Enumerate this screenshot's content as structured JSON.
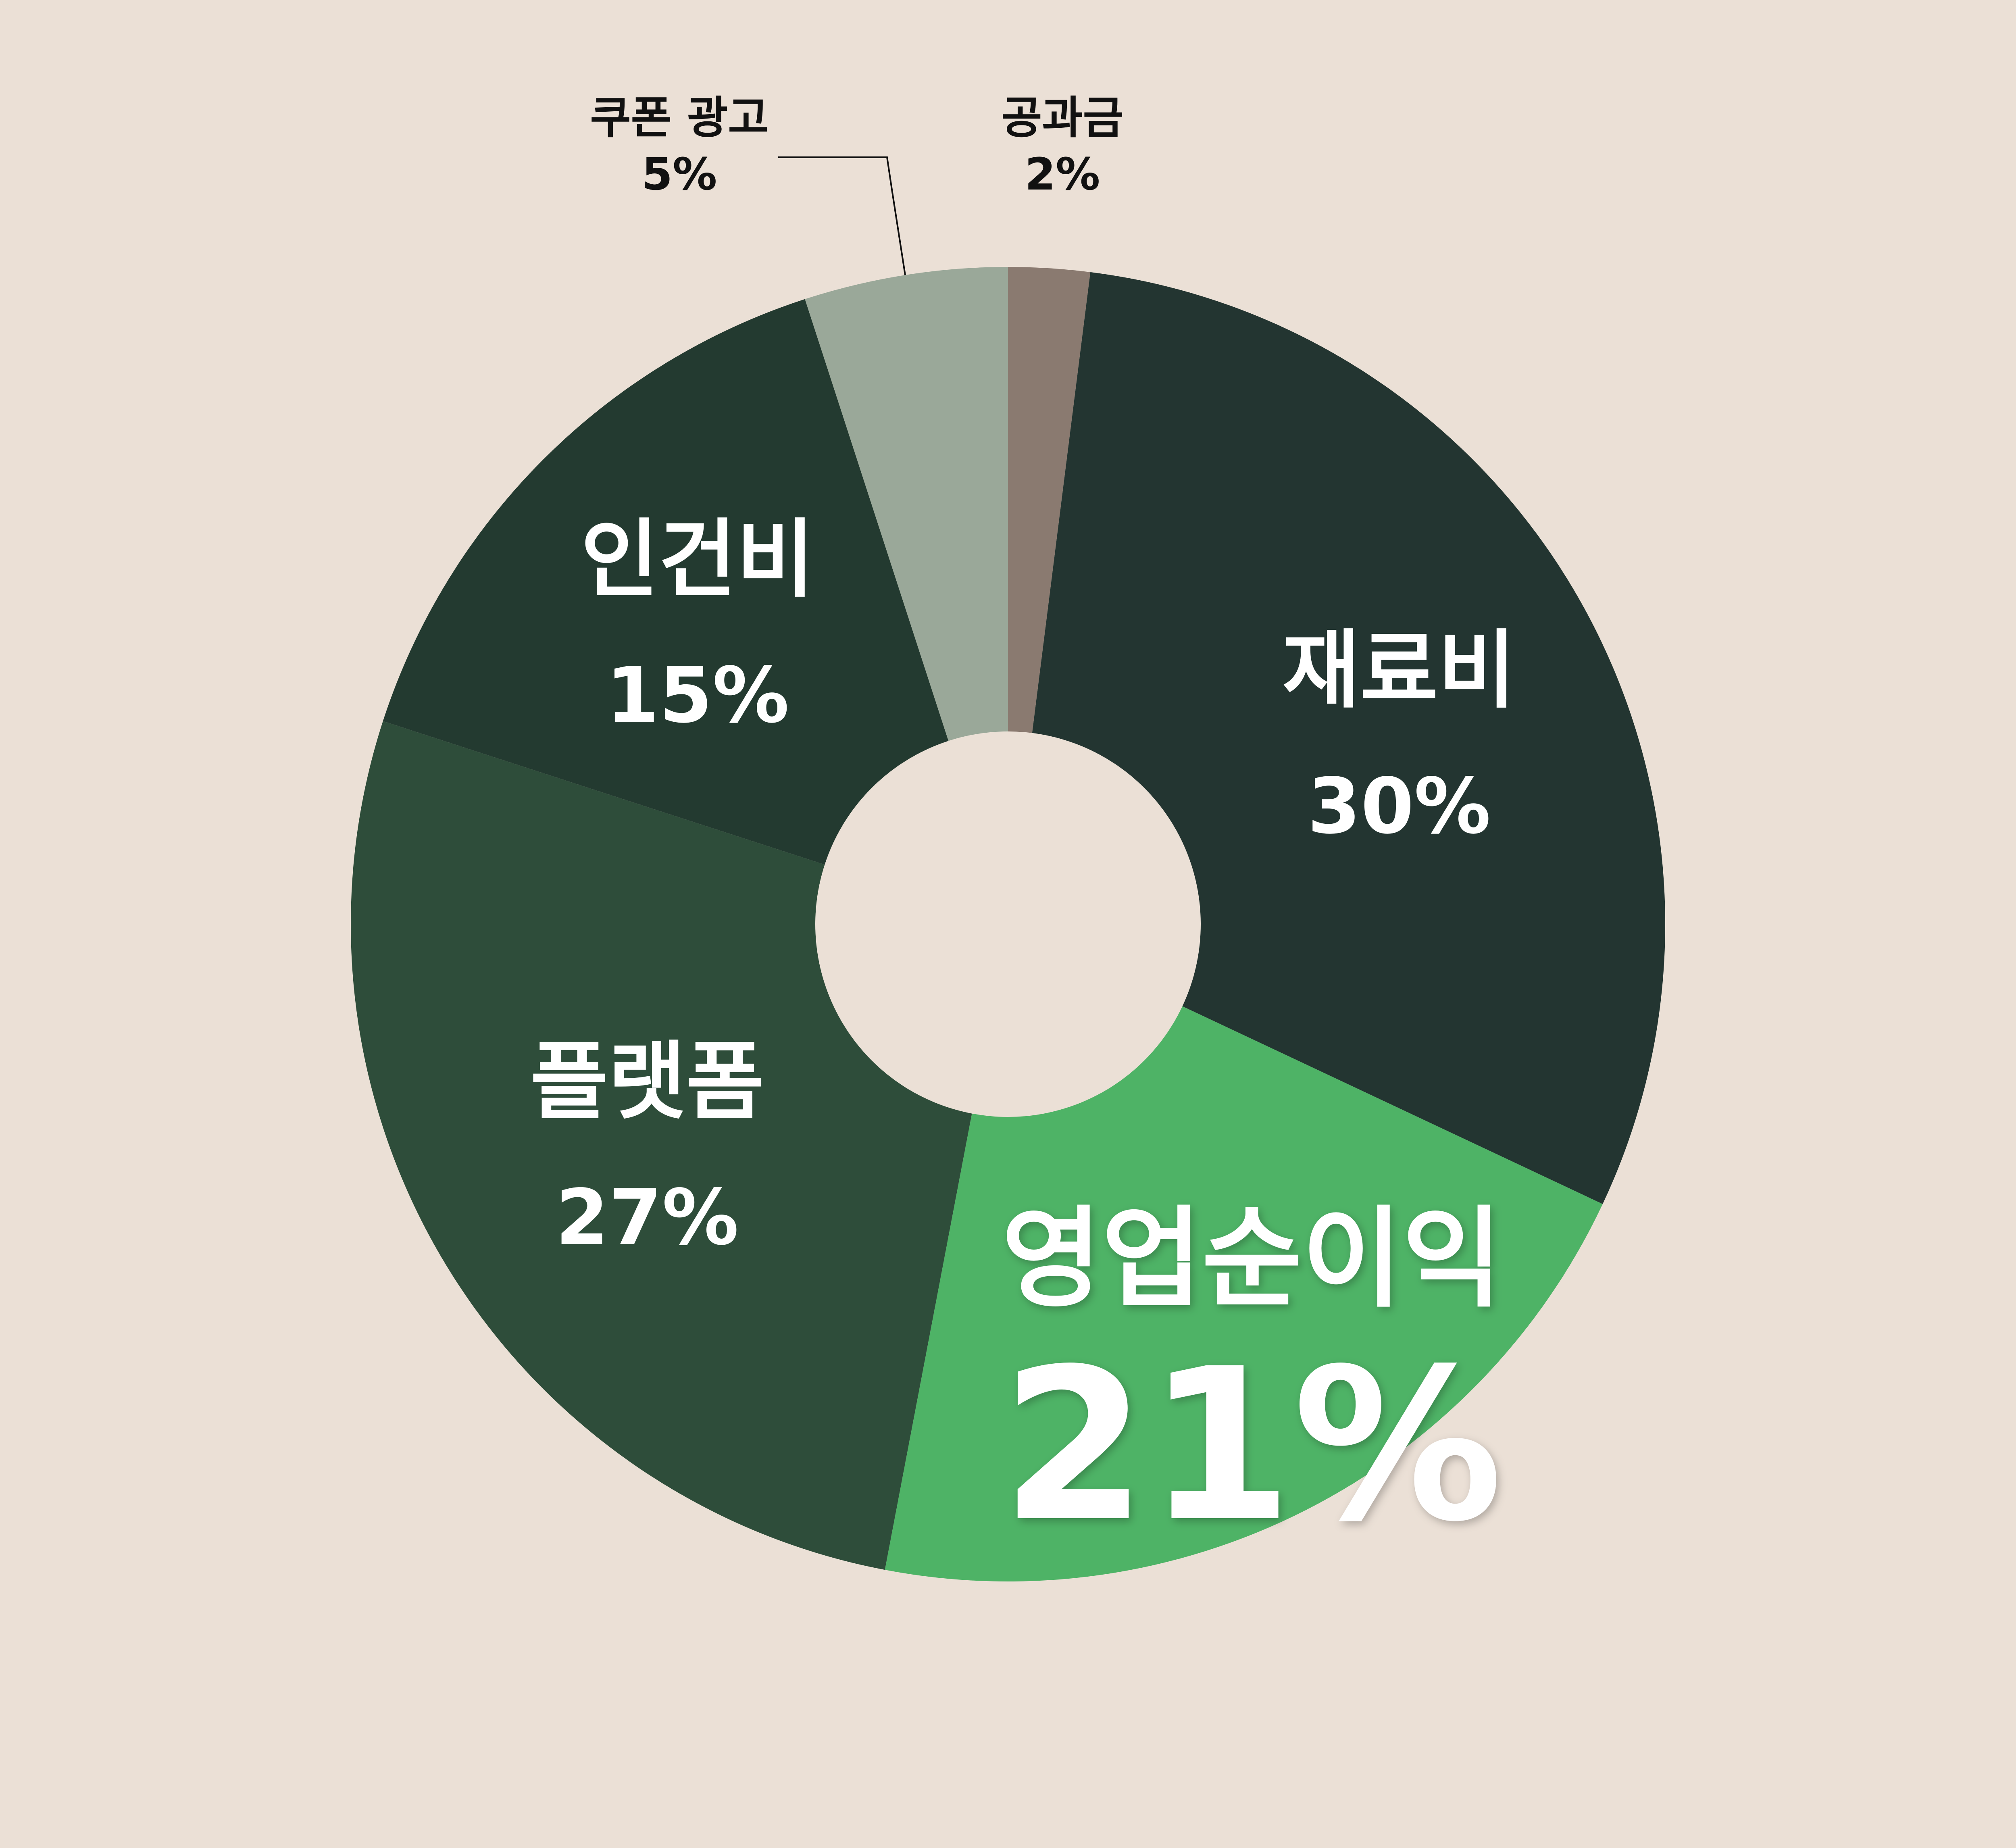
{
  "colors": {
    "background": "#ebe0d6",
    "hole": "#ebe0d6",
    "label_inside": "#ffffff",
    "label_outside": "#111111",
    "leader_line": "#111111"
  },
  "chart_data": {
    "type": "pie",
    "donut": true,
    "start_angle_deg": 0,
    "direction": "clockwise",
    "slices": [
      {
        "name": "공과금",
        "value": 2,
        "percent_label": "2%",
        "color": "#8a7a70",
        "label_position": "outside"
      },
      {
        "name": "재료비",
        "value": 30,
        "percent_label": "30%",
        "color": "#233531",
        "label_position": "inside"
      },
      {
        "name": "영업순이익",
        "value": 21,
        "percent_label": "21%",
        "color": "#4eb366",
        "label_position": "inside",
        "emphasized": true
      },
      {
        "name": "플랫폼",
        "value": 27,
        "percent_label": "27%",
        "color": "#2e4d3a",
        "label_position": "inside"
      },
      {
        "name": "인건비",
        "value": 15,
        "percent_label": "15%",
        "color": "#233a30",
        "label_position": "inside"
      },
      {
        "name": "쿠폰 광고",
        "value": 5,
        "percent_label": "5%",
        "color": "#9aa899",
        "label_position": "outside",
        "leader_line": true
      }
    ]
  }
}
